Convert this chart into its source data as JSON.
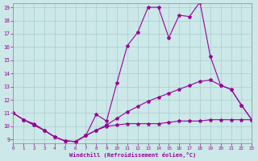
{
  "xlabel": "Windchill (Refroidissement éolien,°C)",
  "bg_color": "#cce8e8",
  "line_color": "#990099",
  "grid_color": "#aacccc",
  "xmin": 0,
  "xmax": 23,
  "ymin": 9,
  "ymax": 19,
  "xticks": [
    0,
    1,
    2,
    3,
    4,
    5,
    6,
    7,
    8,
    9,
    10,
    11,
    12,
    13,
    14,
    15,
    16,
    17,
    18,
    19,
    20,
    21,
    22,
    23
  ],
  "yticks": [
    9,
    10,
    11,
    12,
    13,
    14,
    15,
    16,
    17,
    18,
    19
  ],
  "line1_x": [
    0,
    1,
    2,
    3,
    4,
    5,
    6,
    7,
    8,
    9,
    10,
    11,
    12,
    13,
    14,
    15,
    16,
    17,
    18,
    19,
    20,
    21,
    22,
    23
  ],
  "line1_y": [
    11.0,
    10.5,
    10.2,
    9.7,
    9.2,
    8.9,
    8.85,
    9.3,
    10.9,
    10.4,
    13.3,
    16.1,
    17.1,
    19.0,
    19.0,
    16.7,
    18.4,
    18.3,
    19.4,
    15.3,
    13.1,
    12.8,
    11.6,
    10.5
  ],
  "line2_x": [
    0,
    1,
    2,
    3,
    4,
    5,
    6,
    7,
    8,
    9,
    10,
    11,
    12,
    13,
    14,
    15,
    16,
    17,
    18,
    19,
    20,
    21,
    22,
    23
  ],
  "line2_y": [
    11.0,
    10.5,
    10.1,
    9.7,
    9.2,
    8.9,
    8.85,
    9.3,
    9.7,
    10.1,
    10.6,
    11.1,
    11.5,
    11.9,
    12.2,
    12.5,
    12.8,
    13.1,
    13.4,
    13.5,
    13.1,
    12.8,
    11.6,
    10.5
  ],
  "line3_x": [
    0,
    1,
    2,
    3,
    4,
    5,
    6,
    7,
    8,
    9,
    10,
    11,
    12,
    13,
    14,
    15,
    16,
    17,
    18,
    19,
    20,
    21,
    22,
    23
  ],
  "line3_y": [
    11.0,
    10.5,
    10.1,
    9.7,
    9.2,
    8.9,
    8.85,
    9.3,
    9.7,
    10.0,
    10.1,
    10.2,
    10.2,
    10.2,
    10.2,
    10.3,
    10.4,
    10.4,
    10.4,
    10.5,
    10.5,
    10.5,
    10.5,
    10.5
  ]
}
